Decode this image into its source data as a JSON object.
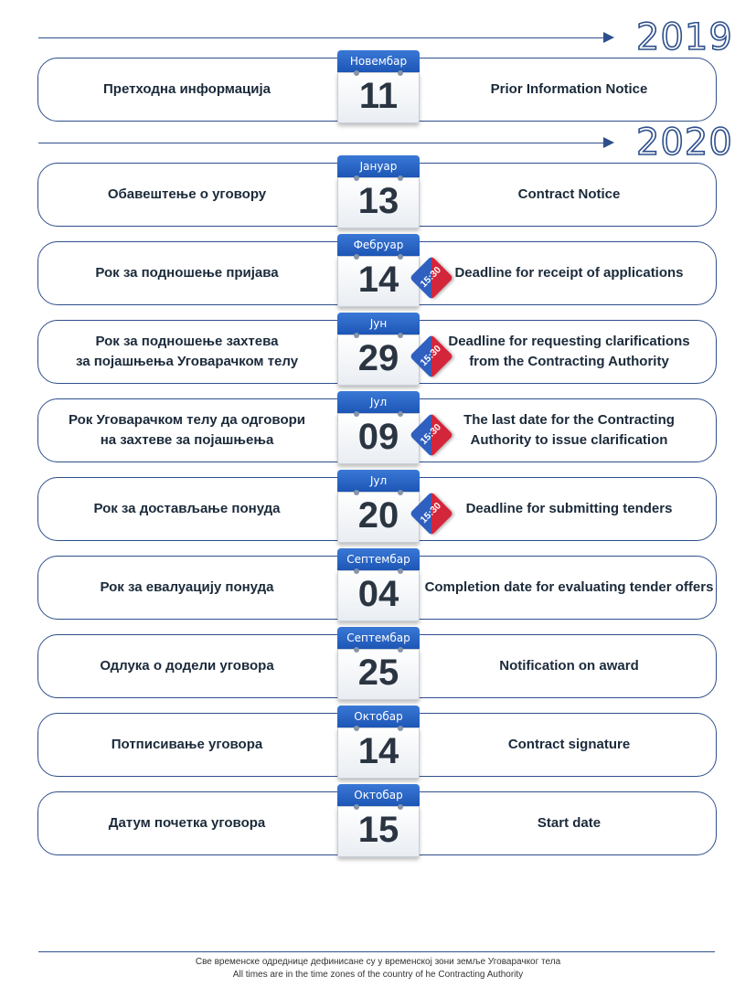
{
  "years": [
    "2019",
    "2020"
  ],
  "events": [
    {
      "sr": "Претходна информација",
      "en": "Prior Information Notice",
      "month": "Новембар",
      "day": "11",
      "time": ""
    },
    {
      "sr": "Обавештење о уговору",
      "en": "Contract Notice",
      "month": "Јануар",
      "day": "13",
      "time": ""
    },
    {
      "sr": "Рок за подношење пријава",
      "en": "Deadline for receipt of applications",
      "month": "Фебруар",
      "day": "14",
      "time": "15:30"
    },
    {
      "sr": "Рок за подношење захтева\nза појашњења Уговарачком телу",
      "en": "Deadline for requesting clarifications\nfrom the Contracting Authority",
      "month": "Јун",
      "day": "29",
      "time": "15:30"
    },
    {
      "sr": "Рок Уговарачком телу да одговори\nна захтеве за појашњења",
      "en": "The last date for the Contracting\nAuthority to issue clarification",
      "month": "Јул",
      "day": "09",
      "time": "15:30"
    },
    {
      "sr": "Рок за достављање понуда",
      "en": "Deadline for submitting tenders",
      "month": "Јул",
      "day": "20",
      "time": "15:30"
    },
    {
      "sr": "Рок за евалуацију понуда",
      "en": "Completion date for evaluating tender offers",
      "month": "Септембар",
      "day": "04",
      "time": ""
    },
    {
      "sr": "Одлука о додели уговора",
      "en": "Notification on award",
      "month": "Септембар",
      "day": "25",
      "time": ""
    },
    {
      "sr": "Потписивање уговора",
      "en": "Contract signature",
      "month": "Октобар",
      "day": "14",
      "time": ""
    },
    {
      "sr": "Датум почетка уговора",
      "en": "Start date",
      "month": "Октобар",
      "day": "15",
      "time": ""
    }
  ],
  "footer": {
    "sr": "Све временске одреднице дефинисане су у временској зони земље Уговарачког тела",
    "en": "All times are in the time zones of the country of he Contracting Authority"
  },
  "colors": {
    "line": "#2e4f8c",
    "calendar_header": "#2a66c7",
    "tag_red": "#d3263b",
    "tag_blue": "#2f5fbf"
  }
}
